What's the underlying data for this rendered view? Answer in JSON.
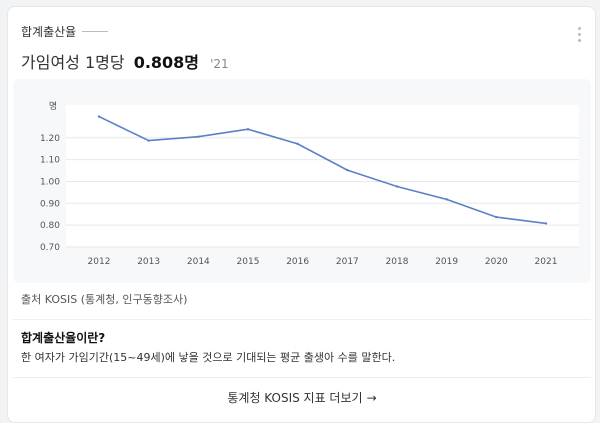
{
  "header": {
    "keyword": "합계출산율",
    "value_prefix": "가임여성 1명당",
    "value": "0.808명",
    "year": "'21"
  },
  "chart_data": {
    "type": "line",
    "ylabel": "명",
    "x": [
      "2012",
      "2013",
      "2014",
      "2015",
      "2016",
      "2017",
      "2018",
      "2019",
      "2020",
      "2021"
    ],
    "series": [
      {
        "values": [
          1.297,
          1.187,
          1.205,
          1.239,
          1.172,
          1.052,
          0.977,
          0.918,
          0.837,
          0.808
        ]
      }
    ],
    "yticks": [
      "1.20",
      "1.10",
      "1.00",
      "0.90",
      "0.80",
      "0.70"
    ],
    "ylim": [
      0.7,
      1.35
    ],
    "grid": true,
    "line_color": "#5b7fc9"
  },
  "source": "출처 KOSIS (통계청, 인구동향조사)",
  "definition": {
    "title": "합계출산율이란?",
    "body": "한 여자가 가임기간(15~49세)에 낳을 것으로 기대되는 평균 출생아 수를 말한다."
  },
  "footer": {
    "link_label": "통계청 KOSIS 지표 더보기",
    "arrow": "→"
  }
}
